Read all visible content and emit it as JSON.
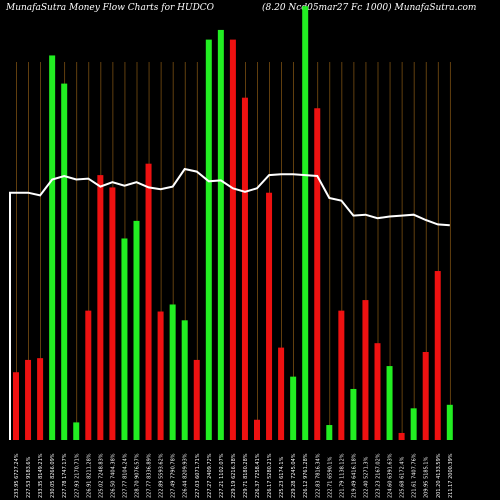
{
  "header": {
    "left_title": "MunafaSutra  Money Flow  Charts for HUDCO",
    "right_title": "(8.20   Ncd05mar27 Fc     1000) MunafaSutra.com"
  },
  "colors": {
    "background": "#000000",
    "up": "#22ee22",
    "down": "#ee1111",
    "line": "#ffffff",
    "grid": "#8a5a14"
  },
  "chart_data": {
    "type": "bar",
    "title": "MunafaSutra  Money Flow  Charts for HUDCO",
    "subtitle": "(8.20   Ncd05mar27 Fc     1000) MunafaSutra.com",
    "categories": [
      "233.95 6727.24%",
      "227.53 9183.6%",
      "233.35 8149.21%",
      "230.05 8266.09%",
      "227.78 1747.17%",
      "227.93 2170.71%",
      "226.91 8211.28%",
      "225.02 7248.83%",
      "226.50 7404.38%",
      "227.77 8104.24%",
      "228.70 9076.57%",
      "227.77 8336.89%",
      "222.89 5593.62%",
      "227.49 7790.78%",
      "226.44 8209.93%",
      "227.03 6071.71%",
      "227.27 2409.72%",
      "227.21 1102.07%",
      "229.19 6216.38%",
      "229.71 8180.28%",
      "226.37 7258.41%",
      "226.17 5280.21%",
      "225.23 6174.1%",
      "229.28 7245.04%",
      "226.12 9761.28%",
      "222.83 7816.34%",
      "222.71 6590.1%",
      "221.79 1138.12%",
      "219.49 6416.18%",
      "222.40 5271.3%",
      "223.23 2167.02%",
      "224.60 6391.63%",
      "225.68 6172.4%",
      "221.61 7407.76%",
      "209.95 5185.1%",
      "201.20 4133.59%",
      "211.17 2000.39%"
    ],
    "values": [
      77,
      91,
      93,
      437,
      405,
      20,
      147,
      301,
      287,
      229,
      249,
      314,
      146,
      154,
      136,
      91,
      455,
      466,
      455,
      389,
      23,
      281,
      105,
      72,
      493,
      377,
      17,
      147,
      58,
      159,
      110,
      84,
      8,
      36,
      100,
      192,
      40
    ],
    "directions": [
      "down",
      "down",
      "down",
      "up",
      "up",
      "up",
      "down",
      "down",
      "down",
      "up",
      "up",
      "down",
      "down",
      "up",
      "up",
      "down",
      "up",
      "up",
      "down",
      "down",
      "down",
      "down",
      "down",
      "up",
      "up",
      "down",
      "up",
      "down",
      "up",
      "down",
      "down",
      "up",
      "down",
      "up",
      "down",
      "down",
      "up"
    ],
    "line_series": [
      281,
      281,
      278,
      296,
      300,
      296,
      297,
      288,
      293,
      289,
      293,
      287,
      285,
      288,
      308,
      305,
      294,
      295,
      286,
      282,
      286,
      301,
      302,
      302,
      301,
      300,
      275,
      272,
      255,
      256,
      252,
      254,
      255,
      256,
      250,
      245,
      244
    ],
    "ylim": [
      0,
      500
    ],
    "grid": true,
    "grid_direction": "vertical",
    "legend": "none"
  }
}
